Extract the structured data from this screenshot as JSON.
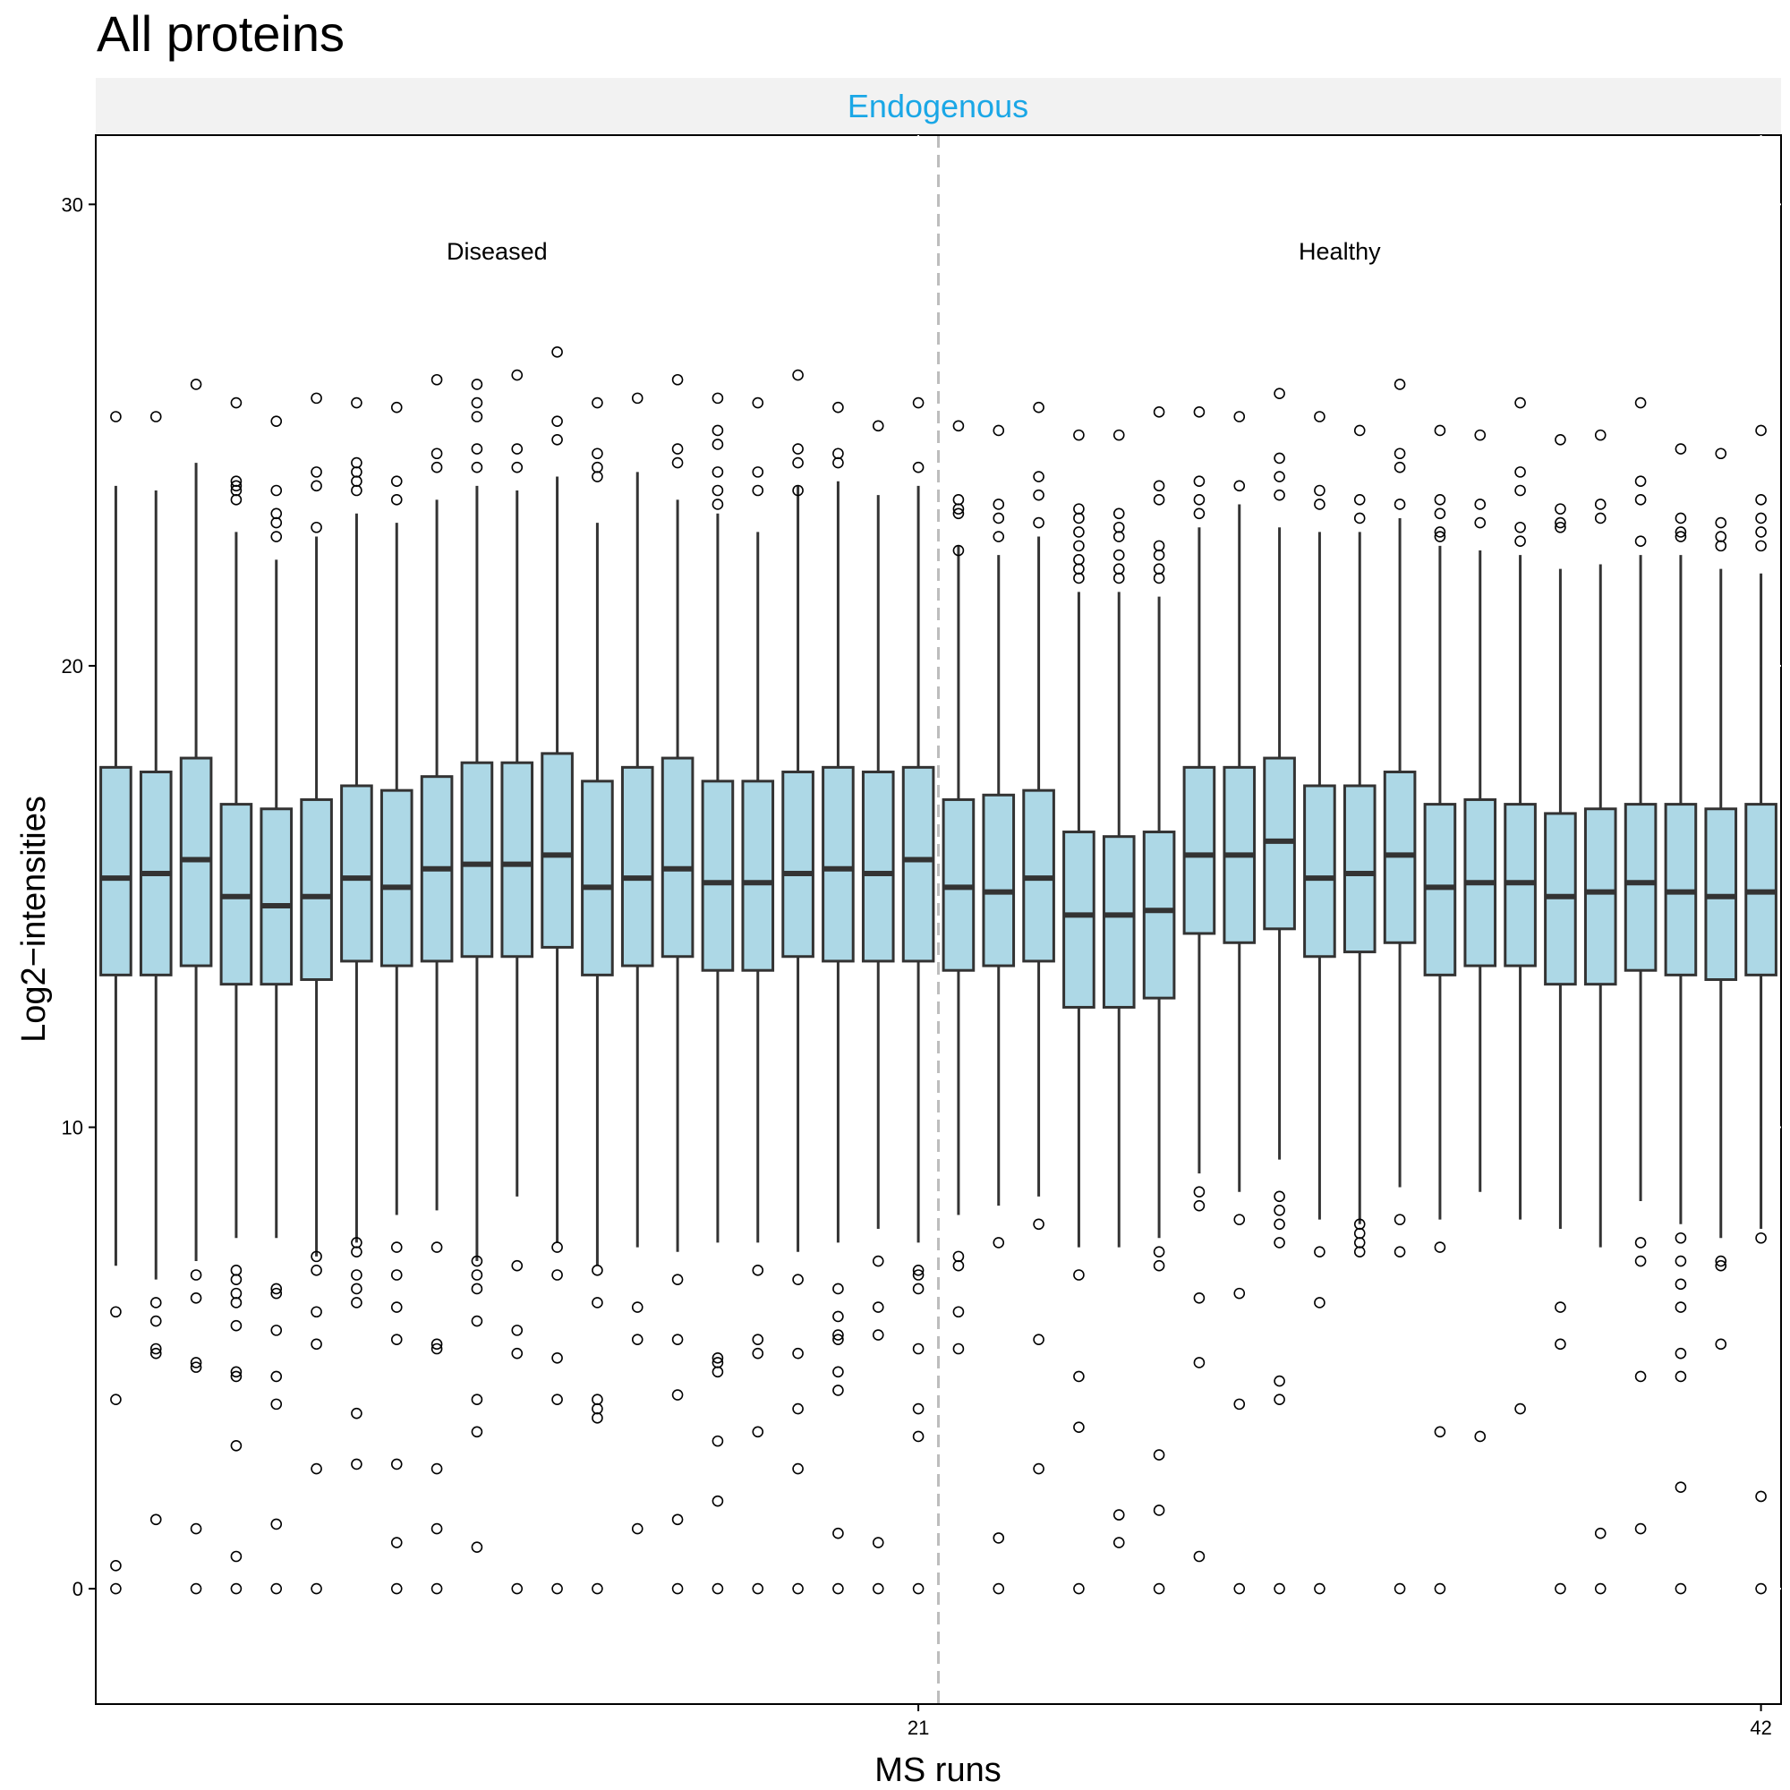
{
  "chart_data": {
    "type": "boxplot",
    "title": "All proteins",
    "facet_label": "Endogenous",
    "xlabel": "MS runs",
    "ylabel": "Log2−intensities",
    "ylim": [
      -2.5,
      31.5
    ],
    "xlim": [
      0.5,
      42.5
    ],
    "y_ticks": [
      0,
      10,
      20,
      30
    ],
    "x_ticks": [
      21,
      42
    ],
    "group_divider_x": 21.5,
    "groups": [
      {
        "label": "Diseased",
        "x": 10.5,
        "y": 29
      },
      {
        "label": "Healthy",
        "x": 31.5,
        "y": 29
      }
    ],
    "colors": {
      "box_fill": "#add8e6",
      "box_stroke": "#333333",
      "strip_bg": "#f2f2f2",
      "strip_text": "#1aa7e6",
      "divider": "#bdbdbd"
    },
    "runs": [
      {
        "run": 1,
        "q1": 13.3,
        "median": 15.4,
        "q3": 17.8,
        "whisker_low": 7.0,
        "whisker_high": 23.9,
        "outliers": [
          25.4,
          6.0,
          4.1,
          0.5,
          0
        ]
      },
      {
        "run": 2,
        "q1": 13.3,
        "median": 15.5,
        "q3": 17.7,
        "whisker_low": 6.7,
        "whisker_high": 23.8,
        "outliers": [
          25.4,
          6.2,
          5.8,
          5.2,
          5.1,
          1.5
        ]
      },
      {
        "run": 3,
        "q1": 13.5,
        "median": 15.8,
        "q3": 18.0,
        "whisker_low": 7.1,
        "whisker_high": 24.4,
        "outliers": [
          26.1,
          6.8,
          6.3,
          4.9,
          4.8,
          1.3,
          0
        ]
      },
      {
        "run": 4,
        "q1": 13.1,
        "median": 15.0,
        "q3": 17.0,
        "whisker_low": 7.6,
        "whisker_high": 22.9,
        "outliers": [
          25.7,
          24.0,
          23.9,
          23.8,
          23.6,
          6.9,
          6.7,
          6.4,
          6.2,
          5.7,
          4.7,
          4.6,
          3.1,
          0.7,
          0
        ]
      },
      {
        "run": 5,
        "q1": 13.1,
        "median": 14.8,
        "q3": 16.9,
        "whisker_low": 7.6,
        "whisker_high": 22.3,
        "outliers": [
          25.3,
          23.8,
          23.3,
          23.1,
          22.8,
          6.5,
          6.4,
          5.6,
          4.6,
          4.0,
          1.4,
          0
        ]
      },
      {
        "run": 6,
        "q1": 13.2,
        "median": 15.0,
        "q3": 17.1,
        "whisker_low": 7.2,
        "whisker_high": 22.8,
        "outliers": [
          25.8,
          24.2,
          23.9,
          23.0,
          7.2,
          6.9,
          6.0,
          5.3,
          2.6,
          0
        ]
      },
      {
        "run": 7,
        "q1": 13.6,
        "median": 15.4,
        "q3": 17.4,
        "whisker_low": 7.5,
        "whisker_high": 23.3,
        "outliers": [
          25.7,
          24.4,
          24.2,
          24.0,
          23.8,
          7.5,
          7.3,
          6.8,
          6.5,
          6.2,
          3.8,
          2.7
        ]
      },
      {
        "run": 8,
        "q1": 13.5,
        "median": 15.2,
        "q3": 17.3,
        "whisker_low": 8.1,
        "whisker_high": 23.1,
        "outliers": [
          25.6,
          24.0,
          23.6,
          7.4,
          6.8,
          6.1,
          5.4,
          2.7,
          1.0,
          0
        ]
      },
      {
        "run": 9,
        "q1": 13.6,
        "median": 15.6,
        "q3": 17.6,
        "whisker_low": 8.2,
        "whisker_high": 23.6,
        "outliers": [
          26.2,
          24.6,
          24.3,
          7.4,
          5.3,
          5.2,
          2.6,
          1.3,
          0
        ]
      },
      {
        "run": 10,
        "q1": 13.7,
        "median": 15.7,
        "q3": 17.9,
        "whisker_low": 7.1,
        "whisker_high": 23.9,
        "outliers": [
          26.1,
          25.7,
          25.4,
          24.7,
          24.3,
          7.1,
          6.8,
          6.5,
          5.8,
          4.1,
          3.4,
          0.9
        ]
      },
      {
        "run": 11,
        "q1": 13.7,
        "median": 15.7,
        "q3": 17.9,
        "whisker_low": 8.5,
        "whisker_high": 23.8,
        "outliers": [
          26.3,
          24.7,
          24.3,
          7.0,
          5.6,
          5.1,
          0
        ]
      },
      {
        "run": 12,
        "q1": 13.9,
        "median": 15.9,
        "q3": 18.1,
        "whisker_low": 7.5,
        "whisker_high": 24.1,
        "outliers": [
          26.8,
          25.3,
          24.9,
          7.4,
          6.8,
          5.0,
          4.1,
          0
        ]
      },
      {
        "run": 13,
        "q1": 13.3,
        "median": 15.2,
        "q3": 17.5,
        "whisker_low": 7.0,
        "whisker_high": 23.1,
        "outliers": [
          25.7,
          24.6,
          24.3,
          24.1,
          6.9,
          6.2,
          4.1,
          3.9,
          3.7,
          0
        ]
      },
      {
        "run": 14,
        "q1": 13.5,
        "median": 15.4,
        "q3": 17.8,
        "whisker_low": 7.4,
        "whisker_high": 24.2,
        "outliers": [
          25.8,
          6.1,
          5.4,
          1.3
        ]
      },
      {
        "run": 15,
        "q1": 13.7,
        "median": 15.6,
        "q3": 18.0,
        "whisker_low": 7.3,
        "whisker_high": 23.6,
        "outliers": [
          26.2,
          24.7,
          24.4,
          6.7,
          5.4,
          4.2,
          1.5,
          0
        ]
      },
      {
        "run": 16,
        "q1": 13.4,
        "median": 15.3,
        "q3": 17.5,
        "whisker_low": 7.5,
        "whisker_high": 23.3,
        "outliers": [
          25.8,
          25.1,
          24.8,
          24.2,
          23.8,
          23.5,
          5.0,
          4.9,
          4.7,
          3.2,
          1.9,
          0
        ]
      },
      {
        "run": 17,
        "q1": 13.4,
        "median": 15.3,
        "q3": 17.5,
        "whisker_low": 7.5,
        "whisker_high": 22.9,
        "outliers": [
          25.7,
          24.2,
          23.8,
          6.9,
          5.4,
          5.1,
          3.4,
          0
        ]
      },
      {
        "run": 18,
        "q1": 13.7,
        "median": 15.5,
        "q3": 17.7,
        "whisker_low": 7.3,
        "whisker_high": 23.9,
        "outliers": [
          26.3,
          24.7,
          24.4,
          23.8,
          6.7,
          5.1,
          3.9,
          2.6,
          0
        ]
      },
      {
        "run": 19,
        "q1": 13.6,
        "median": 15.6,
        "q3": 17.8,
        "whisker_low": 7.5,
        "whisker_high": 24.0,
        "outliers": [
          25.6,
          24.6,
          24.4,
          6.5,
          5.9,
          5.5,
          5.4,
          4.7,
          4.3,
          1.2,
          0
        ]
      },
      {
        "run": 20,
        "q1": 13.6,
        "median": 15.5,
        "q3": 17.7,
        "whisker_low": 7.8,
        "whisker_high": 23.7,
        "outliers": [
          25.2,
          7.1,
          6.1,
          5.5,
          1.0,
          0
        ]
      },
      {
        "run": 21,
        "q1": 13.6,
        "median": 15.8,
        "q3": 17.8,
        "whisker_low": 7.5,
        "whisker_high": 23.9,
        "outliers": [
          25.7,
          24.3,
          6.9,
          6.8,
          6.5,
          5.2,
          3.9,
          3.3,
          0
        ]
      },
      {
        "run": 22,
        "q1": 13.4,
        "median": 15.2,
        "q3": 17.1,
        "whisker_low": 8.1,
        "whisker_high": 22.6,
        "outliers": [
          25.2,
          23.6,
          23.4,
          23.3,
          22.5,
          7.2,
          7.0,
          6.0,
          5.2
        ]
      },
      {
        "run": 23,
        "q1": 13.5,
        "median": 15.1,
        "q3": 17.2,
        "whisker_low": 8.3,
        "whisker_high": 22.4,
        "outliers": [
          25.1,
          23.5,
          23.2,
          22.8,
          7.5,
          1.1,
          0
        ]
      },
      {
        "run": 24,
        "q1": 13.6,
        "median": 15.4,
        "q3": 17.3,
        "whisker_low": 8.5,
        "whisker_high": 22.8,
        "outliers": [
          25.6,
          24.1,
          23.7,
          23.1,
          7.9,
          5.4,
          2.6
        ]
      },
      {
        "run": 25,
        "q1": 12.6,
        "median": 14.6,
        "q3": 16.4,
        "whisker_low": 7.4,
        "whisker_high": 21.6,
        "outliers": [
          25.0,
          23.4,
          23.2,
          22.9,
          22.6,
          22.3,
          22.1,
          21.9,
          6.8,
          4.6,
          3.5,
          0
        ]
      },
      {
        "run": 26,
        "q1": 12.6,
        "median": 14.6,
        "q3": 16.3,
        "whisker_low": 7.4,
        "whisker_high": 21.6,
        "outliers": [
          25.0,
          23.3,
          23.0,
          22.8,
          22.4,
          22.1,
          21.9,
          1.6,
          1.0
        ]
      },
      {
        "run": 27,
        "q1": 12.8,
        "median": 14.7,
        "q3": 16.4,
        "whisker_low": 7.6,
        "whisker_high": 21.5,
        "outliers": [
          25.5,
          23.9,
          23.6,
          22.6,
          22.4,
          22.1,
          21.9,
          7.3,
          7.0,
          2.9,
          1.7,
          0
        ]
      },
      {
        "run": 28,
        "q1": 14.2,
        "median": 15.9,
        "q3": 17.8,
        "whisker_low": 9.0,
        "whisker_high": 23.0,
        "outliers": [
          25.5,
          24.0,
          23.6,
          23.3,
          8.6,
          8.3,
          6.3,
          4.9,
          0.7
        ]
      },
      {
        "run": 29,
        "q1": 14.0,
        "median": 15.9,
        "q3": 17.8,
        "whisker_low": 8.6,
        "whisker_high": 23.5,
        "outliers": [
          25.4,
          23.9,
          8.0,
          6.4,
          4.0,
          0
        ]
      },
      {
        "run": 30,
        "q1": 14.3,
        "median": 16.2,
        "q3": 18.0,
        "whisker_low": 9.3,
        "whisker_high": 23.0,
        "outliers": [
          25.9,
          24.5,
          24.1,
          23.7,
          8.5,
          8.2,
          7.9,
          7.5,
          4.5,
          4.1,
          0
        ]
      },
      {
        "run": 31,
        "q1": 13.7,
        "median": 15.4,
        "q3": 17.4,
        "whisker_low": 8.0,
        "whisker_high": 22.9,
        "outliers": [
          25.4,
          23.8,
          23.5,
          7.3,
          6.2,
          0
        ]
      },
      {
        "run": 32,
        "q1": 13.8,
        "median": 15.5,
        "q3": 17.4,
        "whisker_low": 7.9,
        "whisker_high": 22.9,
        "outliers": [
          25.1,
          23.6,
          23.2,
          7.9,
          7.7,
          7.5,
          7.3
        ]
      },
      {
        "run": 33,
        "q1": 14.0,
        "median": 15.9,
        "q3": 17.7,
        "whisker_low": 8.7,
        "whisker_high": 23.2,
        "outliers": [
          26.1,
          24.6,
          24.3,
          23.5,
          8.0,
          7.3,
          0
        ]
      },
      {
        "run": 34,
        "q1": 13.3,
        "median": 15.2,
        "q3": 17.0,
        "whisker_low": 8.0,
        "whisker_high": 22.6,
        "outliers": [
          25.1,
          23.6,
          23.3,
          22.9,
          22.8,
          7.4,
          3.4,
          0
        ]
      },
      {
        "run": 35,
        "q1": 13.5,
        "median": 15.3,
        "q3": 17.1,
        "whisker_low": 8.6,
        "whisker_high": 22.5,
        "outliers": [
          25.0,
          23.5,
          23.1,
          3.3
        ]
      },
      {
        "run": 36,
        "q1": 13.5,
        "median": 15.3,
        "q3": 17.0,
        "whisker_low": 8.0,
        "whisker_high": 22.4,
        "outliers": [
          25.7,
          24.2,
          23.8,
          23.0,
          22.7,
          3.9
        ]
      },
      {
        "run": 37,
        "q1": 13.1,
        "median": 15.0,
        "q3": 16.8,
        "whisker_low": 7.8,
        "whisker_high": 22.1,
        "outliers": [
          24.9,
          23.4,
          23.1,
          23.0,
          6.1,
          5.3,
          0
        ]
      },
      {
        "run": 38,
        "q1": 13.1,
        "median": 15.1,
        "q3": 16.9,
        "whisker_low": 7.4,
        "whisker_high": 22.2,
        "outliers": [
          25.0,
          23.5,
          23.2,
          1.2,
          0
        ]
      },
      {
        "run": 39,
        "q1": 13.4,
        "median": 15.3,
        "q3": 17.0,
        "whisker_low": 8.4,
        "whisker_high": 22.4,
        "outliers": [
          25.7,
          24.0,
          23.6,
          22.7,
          7.5,
          7.1,
          4.6,
          1.3
        ]
      },
      {
        "run": 40,
        "q1": 13.3,
        "median": 15.1,
        "q3": 17.0,
        "whisker_low": 7.9,
        "whisker_high": 22.4,
        "outliers": [
          24.7,
          23.2,
          22.9,
          22.8,
          7.6,
          7.1,
          6.6,
          6.1,
          5.1,
          4.6,
          2.2,
          0
        ]
      },
      {
        "run": 41,
        "q1": 13.2,
        "median": 15.0,
        "q3": 16.9,
        "whisker_low": 7.6,
        "whisker_high": 22.1,
        "outliers": [
          24.6,
          23.1,
          22.8,
          22.6,
          7.1,
          7.0,
          5.3
        ]
      },
      {
        "run": 42,
        "q1": 13.3,
        "median": 15.1,
        "q3": 17.0,
        "whisker_low": 7.8,
        "whisker_high": 22.0,
        "outliers": [
          25.1,
          23.6,
          23.2,
          22.9,
          22.6,
          7.6,
          2.0,
          0
        ]
      }
    ]
  }
}
